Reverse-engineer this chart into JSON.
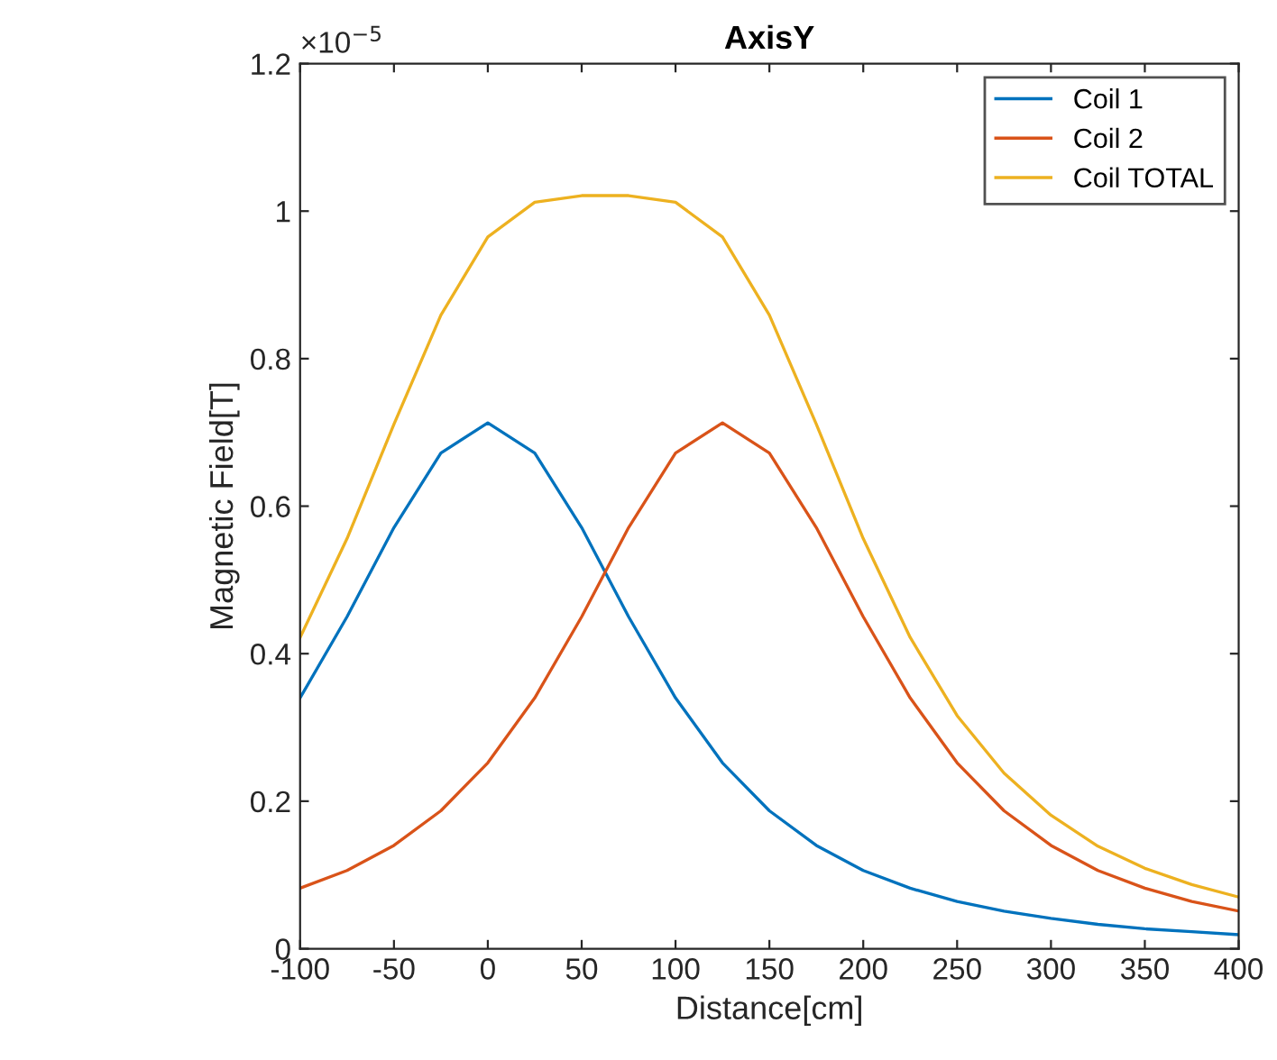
{
  "chart_data": {
    "type": "line",
    "title": "AxisY",
    "xlabel": "Distance[cm]",
    "ylabel": "Magnetic Field[T]",
    "annotations": [
      "×10$^{−5}$"
    ],
    "x": [
      -100,
      -75,
      -50,
      -25,
      0,
      25,
      50,
      75,
      100,
      125,
      150,
      175,
      200,
      225,
      250,
      275,
      300,
      325,
      350,
      375,
      400
    ],
    "series": [
      {
        "name": "Coil 1",
        "color": "#0072bd",
        "values": [
          0.34,
          0.45,
          0.571,
          0.672,
          0.713,
          0.672,
          0.571,
          0.45,
          0.34,
          0.252,
          0.187,
          0.14,
          0.106,
          0.082,
          0.064,
          0.051,
          0.041,
          0.033,
          0.027,
          0.023,
          0.019
        ]
      },
      {
        "name": "Coil 2",
        "color": "#d95319",
        "values": [
          0.082,
          0.106,
          0.14,
          0.187,
          0.252,
          0.34,
          0.45,
          0.571,
          0.672,
          0.713,
          0.672,
          0.571,
          0.45,
          0.34,
          0.252,
          0.187,
          0.14,
          0.106,
          0.082,
          0.064,
          0.051
        ]
      },
      {
        "name": "Coil TOTAL",
        "color": "#edb120",
        "values": [
          0.422,
          0.556,
          0.711,
          0.859,
          0.965,
          1.012,
          1.021,
          1.021,
          1.012,
          0.965,
          0.859,
          0.711,
          0.556,
          0.422,
          0.316,
          0.238,
          0.181,
          0.139,
          0.109,
          0.087,
          0.07
        ]
      }
    ],
    "xlim": [
      -100,
      400
    ],
    "xticks": [
      -100,
      -50,
      0,
      50,
      100,
      150,
      200,
      250,
      300,
      350,
      400
    ],
    "ylim": [
      0,
      1.2
    ],
    "yticks": [
      0,
      0.2,
      0.4,
      0.6,
      0.8,
      1,
      1.2
    ],
    "grid": false,
    "legend": "top right",
    "line_style": "solid",
    "marker": "none"
  }
}
